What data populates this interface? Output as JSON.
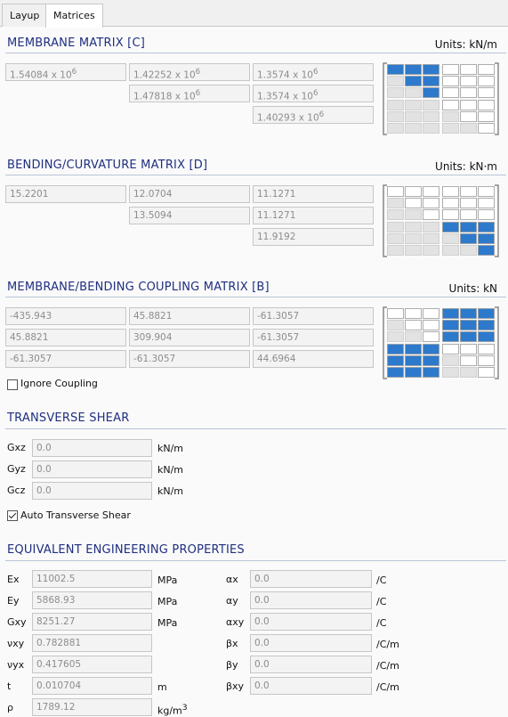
{
  "tabs": [
    {
      "label": "Layup"
    },
    {
      "label": "Matrices"
    }
  ],
  "membrane": {
    "title": "MEMBRANE MATRIX [C]",
    "units": "Units: kN/m",
    "cells": [
      {
        "base": "1.54084 x 10",
        "exp": "6"
      },
      {
        "base": "1.42252 x 10",
        "exp": "6"
      },
      {
        "base": "1.3574 x 10",
        "exp": "6"
      },
      {
        "base": "1.47818 x 10",
        "exp": "6"
      },
      {
        "base": "1.3574 x 10",
        "exp": "6"
      },
      {
        "base": "1.40293 x 10",
        "exp": "6"
      }
    ]
  },
  "bending": {
    "title": "BENDING/CURVATURE MATRIX [D]",
    "units": "Units: kN·m",
    "cells": [
      "15.2201",
      "12.0704",
      "11.1271",
      "13.5094",
      "11.1271",
      "11.9192"
    ]
  },
  "coupling": {
    "title": "MEMBRANE/BENDING COUPLING MATRIX [B]",
    "units": "Units: kN",
    "cells": [
      "-435.943",
      "45.8821",
      "-61.3057",
      "45.8821",
      "309.904",
      "-61.3057",
      "-61.3057",
      "-61.3057",
      "44.6964"
    ],
    "ignore_label": "Ignore Coupling",
    "ignore_checked": false
  },
  "shear": {
    "title": "TRANSVERSE SHEAR",
    "rows": [
      {
        "label": "Gxz",
        "value": "0.0",
        "unit": "kN/m"
      },
      {
        "label": "Gyz",
        "value": "0.0",
        "unit": "kN/m"
      },
      {
        "label": "Gcz",
        "value": "0.0",
        "unit": "kN/m"
      }
    ],
    "auto_label": "Auto Transverse Shear",
    "auto_checked": true
  },
  "props": {
    "title": "EQUIVALENT ENGINEERING PROPERTIES",
    "left": [
      {
        "label": "Ex",
        "value": "11002.5",
        "unit": "MPa"
      },
      {
        "label": "Ey",
        "value": "5868.93",
        "unit": "MPa"
      },
      {
        "label": "Gxy",
        "value": "8251.27",
        "unit": "MPa"
      },
      {
        "label": "νxy",
        "value": "0.782881",
        "unit": ""
      },
      {
        "label": "νyx",
        "value": "0.417605",
        "unit": ""
      },
      {
        "label": "t",
        "value": "0.010704",
        "unit": "m"
      },
      {
        "label": "ρ",
        "value": "1789.12",
        "unit": "kg/m",
        "unit_sup": "3"
      }
    ],
    "right": [
      {
        "label": "αx",
        "value": "0.0",
        "unit": "/C"
      },
      {
        "label": "αy",
        "value": "0.0",
        "unit": "/C"
      },
      {
        "label": "αxy",
        "value": "0.0",
        "unit": "/C"
      },
      {
        "label": "βx",
        "value": "0.0",
        "unit": "/C/m"
      },
      {
        "label": "βy",
        "value": "0.0",
        "unit": "/C/m"
      },
      {
        "label": "βxy",
        "value": "0.0",
        "unit": "/C/m"
      }
    ]
  },
  "colors": {
    "accent": "#2d7acc",
    "title": "#1f2f80",
    "field_text": "#8c8c8c"
  },
  "icons": {
    "matrix_diagram": "abd-matrix-icon"
  }
}
